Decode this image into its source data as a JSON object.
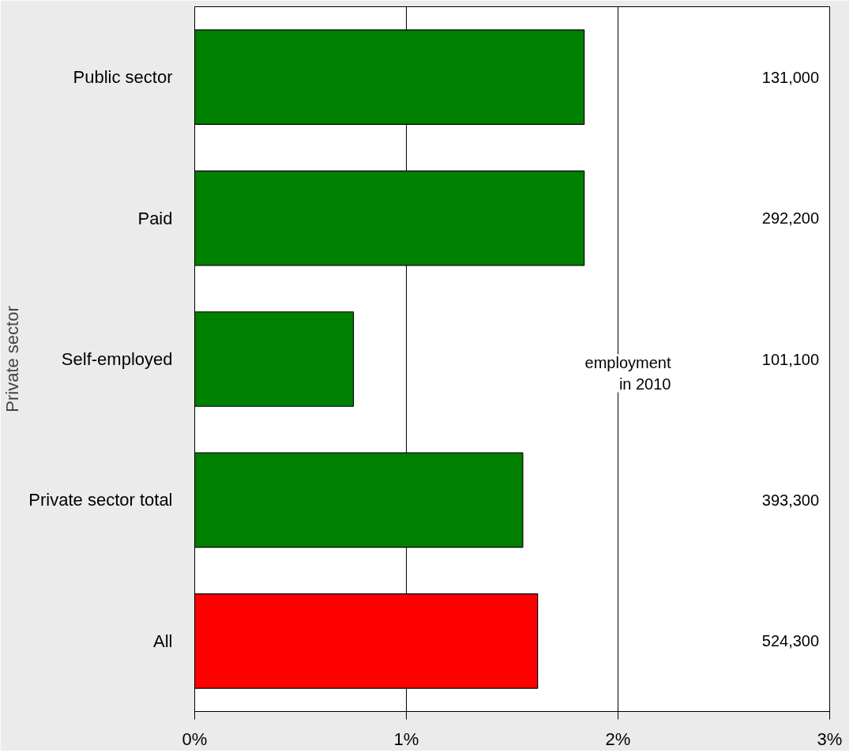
{
  "chart_data": {
    "type": "bar",
    "orientation": "horizontal",
    "ylabel": "Private sector",
    "categories": [
      "Public sector",
      "Paid",
      "Self-employed",
      "Private sector total",
      "All"
    ],
    "values": [
      1.84,
      1.84,
      0.75,
      1.55,
      1.62
    ],
    "colors": [
      "#008000",
      "#008000",
      "#008000",
      "#008000",
      "#ff0000"
    ],
    "xlim": [
      0,
      3
    ],
    "xticks": [
      {
        "value": 0,
        "label": "0%"
      },
      {
        "value": 1,
        "label": "1%"
      },
      {
        "value": 2,
        "label": "2%"
      },
      {
        "value": 3,
        "label": "3%"
      }
    ],
    "grid": "x",
    "annotations": [
      "employment\nin 2010",
      "131,000",
      "292,200",
      "101,100",
      "393,300",
      "524,300"
    ]
  }
}
